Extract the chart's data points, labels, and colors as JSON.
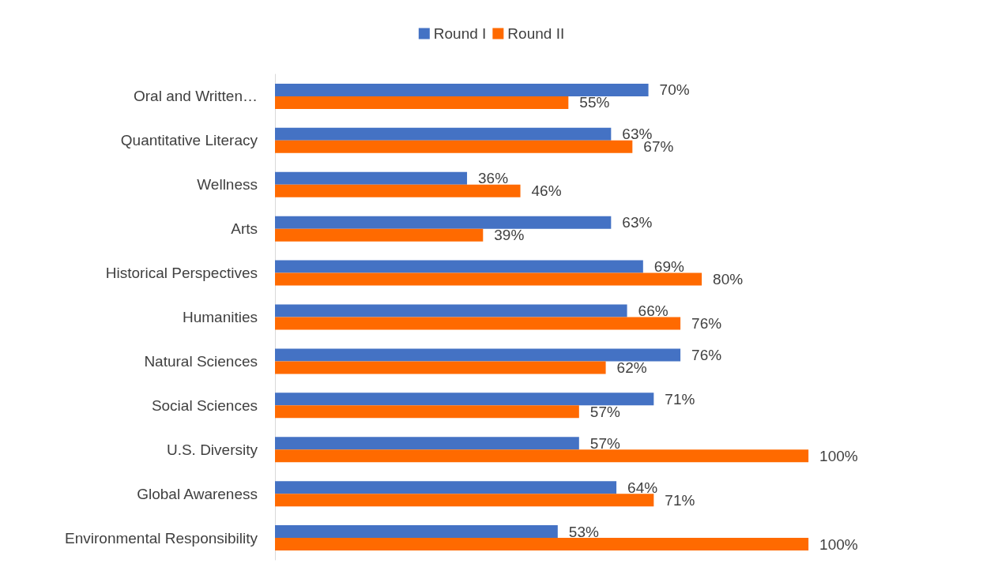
{
  "chart_data": {
    "type": "bar",
    "orientation": "horizontal",
    "legend": "top",
    "grid": false,
    "categories": [
      "Oral and Written…",
      "Quantitative Literacy",
      "Wellness",
      "Arts",
      "Historical Perspectives",
      "Humanities",
      "Natural Sciences",
      "Social Sciences",
      "U.S. Diversity",
      "Global Awareness",
      "Environmental Responsibility"
    ],
    "series": [
      {
        "name": "Round I",
        "color": "#4472c4",
        "values": [
          70,
          63,
          36,
          63,
          69,
          66,
          76,
          71,
          57,
          64,
          53
        ],
        "value_labels": [
          "70%",
          "63%",
          "36%",
          "63%",
          "69%",
          "66%",
          "76%",
          "71%",
          "57%",
          "64%",
          "53%"
        ]
      },
      {
        "name": "Round II",
        "color": "#ff6a00",
        "values": [
          55,
          67,
          46,
          39,
          80,
          76,
          62,
          57,
          100,
          71,
          100
        ],
        "value_labels": [
          "55%",
          "67%",
          "46%",
          "39%",
          "80%",
          "76%",
          "62%",
          "57%",
          "100%",
          "71%",
          "100%"
        ]
      }
    ]
  }
}
